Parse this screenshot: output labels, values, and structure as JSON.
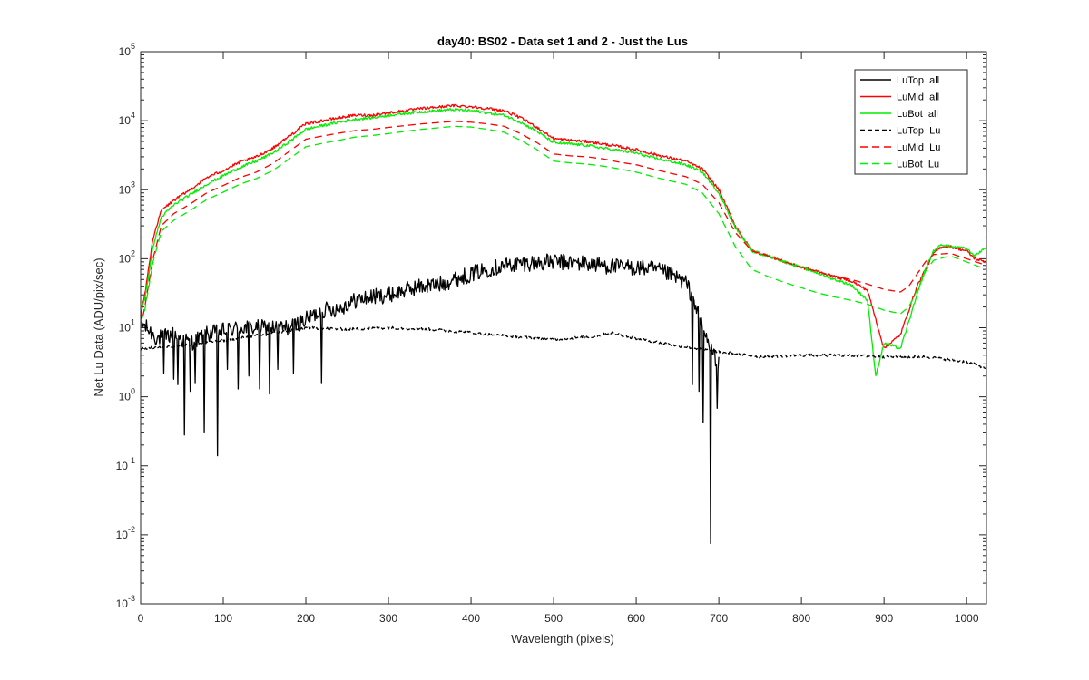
{
  "chart_data": {
    "type": "line",
    "title": "day40: BS02 - Data set 1 and 2 - Just the Lus",
    "xlabel": "Wavelength (pixels)",
    "ylabel": "Net Lu Data (ADU/pix/sec)",
    "xlim": [
      0,
      1024
    ],
    "ylim": [
      0.001,
      100000
    ],
    "yscale": "log",
    "grid": false,
    "legend_position": "top-right",
    "x_ticks": [
      "0",
      "100",
      "200",
      "300",
      "400",
      "500",
      "600",
      "700",
      "800",
      "900",
      "1000"
    ],
    "y_ticks": [
      {
        "base": "10",
        "exp": "-3"
      },
      {
        "base": "10",
        "exp": "-2"
      },
      {
        "base": "10",
        "exp": "-1"
      },
      {
        "base": "10",
        "exp": "0"
      },
      {
        "base": "10",
        "exp": "1"
      },
      {
        "base": "10",
        "exp": "2"
      },
      {
        "base": "10",
        "exp": "3"
      },
      {
        "base": "10",
        "exp": "4"
      },
      {
        "base": "10",
        "exp": "5"
      }
    ],
    "series": [
      {
        "name": "LuTop  all",
        "color": "#000000",
        "dash": "solid",
        "noise": "high",
        "x": [
          0,
          20,
          40,
          60,
          80,
          100,
          120,
          140,
          160,
          180,
          200,
          220,
          240,
          260,
          280,
          300,
          320,
          340,
          360,
          380,
          400,
          420,
          440,
          460,
          480,
          500,
          520,
          540,
          560,
          580,
          600,
          620,
          640,
          660,
          670,
          680,
          690,
          700
        ],
        "y": [
          12,
          7,
          8,
          6,
          8,
          9,
          10,
          10,
          10,
          10,
          13,
          18,
          19,
          25,
          28,
          30,
          35,
          40,
          42,
          50,
          60,
          70,
          80,
          85,
          88,
          90,
          88,
          85,
          80,
          75,
          75,
          70,
          60,
          45,
          25,
          10,
          5,
          3
        ],
        "spikes": [
          {
            "x": 28,
            "y": 2.2
          },
          {
            "x": 40,
            "y": 1.8
          },
          {
            "x": 45,
            "y": 1.5
          },
          {
            "x": 53,
            "y": 0.28
          },
          {
            "x": 60,
            "y": 1.2
          },
          {
            "x": 66,
            "y": 1.6
          },
          {
            "x": 77,
            "y": 0.3
          },
          {
            "x": 93,
            "y": 0.14
          },
          {
            "x": 105,
            "y": 2.5
          },
          {
            "x": 118,
            "y": 1.3
          },
          {
            "x": 131,
            "y": 2
          },
          {
            "x": 144,
            "y": 1.3
          },
          {
            "x": 156,
            "y": 1.1
          },
          {
            "x": 166,
            "y": 2.5
          },
          {
            "x": 185,
            "y": 2.2
          },
          {
            "x": 219,
            "y": 1.6
          },
          {
            "x": 668,
            "y": 1.5
          },
          {
            "x": 676,
            "y": 1.2
          },
          {
            "x": 681,
            "y": 0.42
          },
          {
            "x": 690,
            "y": 0.0075
          },
          {
            "x": 698,
            "y": 0.68
          }
        ]
      },
      {
        "name": "LuMid  all",
        "color": "#ff0000",
        "dash": "solid",
        "noise": "low",
        "x": [
          0,
          5,
          15,
          25,
          40,
          60,
          80,
          100,
          120,
          140,
          160,
          180,
          200,
          220,
          240,
          260,
          280,
          300,
          340,
          380,
          400,
          420,
          440,
          460,
          480,
          500,
          520,
          540,
          560,
          580,
          600,
          620,
          640,
          660,
          680,
          700,
          720,
          740,
          760,
          780,
          800,
          820,
          840,
          860,
          880,
          900,
          920,
          940,
          950,
          960,
          970,
          980,
          1000,
          1010,
          1024
        ],
        "y": [
          15,
          30,
          200,
          500,
          700,
          1000,
          1500,
          1900,
          2500,
          3000,
          4000,
          6000,
          9000,
          10000,
          11000,
          12000,
          12000,
          13000,
          15000,
          16500,
          16000,
          15000,
          14000,
          11000,
          8000,
          5500,
          5200,
          5000,
          4600,
          4200,
          3800,
          3300,
          2900,
          2600,
          2000,
          1000,
          300,
          130,
          110,
          90,
          75,
          65,
          55,
          48,
          35,
          5,
          8,
          40,
          70,
          120,
          150,
          150,
          130,
          100,
          90
        ]
      },
      {
        "name": "LuBot  all",
        "color": "#00ee00",
        "dash": "solid",
        "noise": "low",
        "x": [
          0,
          5,
          15,
          25,
          40,
          60,
          80,
          100,
          120,
          140,
          160,
          180,
          200,
          220,
          240,
          260,
          280,
          300,
          340,
          380,
          400,
          420,
          440,
          460,
          480,
          500,
          520,
          540,
          560,
          580,
          600,
          620,
          640,
          660,
          680,
          700,
          720,
          740,
          760,
          780,
          800,
          820,
          840,
          860,
          880,
          890,
          900,
          920,
          940,
          950,
          960,
          970,
          980,
          1000,
          1010,
          1024
        ],
        "y": [
          20,
          25,
          150,
          400,
          600,
          850,
          1200,
          1600,
          2100,
          2600,
          3400,
          5000,
          7500,
          8500,
          9500,
          10500,
          11000,
          12000,
          13500,
          14500,
          14000,
          13000,
          12000,
          9500,
          7000,
          4800,
          4600,
          4400,
          4000,
          3700,
          3400,
          2900,
          2600,
          2300,
          1800,
          900,
          280,
          130,
          110,
          90,
          75,
          62,
          50,
          42,
          25,
          2,
          6,
          5,
          30,
          70,
          130,
          160,
          150,
          140,
          110,
          150
        ]
      },
      {
        "name": "LuTop  Lu",
        "color": "#000000",
        "dash": "5,3",
        "noise": "low",
        "x": [
          0,
          50,
          100,
          150,
          200,
          250,
          300,
          350,
          400,
          450,
          500,
          550,
          570,
          600,
          650,
          700,
          750,
          800,
          850,
          900,
          950,
          1000,
          1024
        ],
        "y": [
          5,
          5.5,
          6.5,
          8,
          10,
          9.5,
          10,
          9.5,
          8.5,
          7.5,
          6.8,
          7.5,
          8.5,
          7,
          5.5,
          4.5,
          3.8,
          4,
          4,
          3.8,
          3.8,
          3.2,
          2.6
        ]
      },
      {
        "name": "LuMid  Lu",
        "color": "#ff0000",
        "dash": "8,5",
        "noise": "none",
        "x": [
          0,
          5,
          15,
          25,
          40,
          60,
          80,
          100,
          120,
          140,
          160,
          180,
          200,
          220,
          240,
          260,
          280,
          300,
          340,
          380,
          400,
          420,
          440,
          460,
          480,
          500,
          520,
          540,
          560,
          580,
          600,
          620,
          640,
          660,
          680,
          700,
          720,
          740,
          760,
          780,
          800,
          820,
          840,
          860,
          880,
          900,
          920,
          930,
          940,
          950,
          960,
          980,
          1000,
          1024
        ],
        "y": [
          10,
          20,
          100,
          300,
          450,
          620,
          900,
          1150,
          1500,
          1800,
          2400,
          3600,
          5400,
          6000,
          6600,
          7200,
          7500,
          8000,
          9000,
          9800,
          9500,
          9000,
          8300,
          6500,
          4800,
          3300,
          3100,
          3000,
          2800,
          2500,
          2300,
          2000,
          1750,
          1550,
          1200,
          650,
          240,
          130,
          110,
          90,
          75,
          65,
          56,
          50,
          43,
          36,
          33,
          40,
          60,
          90,
          115,
          120,
          100,
          80
        ]
      },
      {
        "name": "LuBot  Lu",
        "color": "#00ee00",
        "dash": "8,5",
        "noise": "none",
        "x": [
          0,
          5,
          15,
          25,
          40,
          60,
          80,
          100,
          120,
          140,
          160,
          180,
          200,
          220,
          240,
          260,
          280,
          300,
          340,
          380,
          400,
          420,
          440,
          460,
          480,
          500,
          520,
          540,
          560,
          580,
          600,
          620,
          640,
          660,
          680,
          700,
          720,
          740,
          760,
          780,
          800,
          820,
          840,
          860,
          880,
          900,
          920,
          930,
          940,
          950,
          960,
          980,
          1000,
          1024
        ],
        "y": [
          12,
          18,
          90,
          250,
          360,
          500,
          720,
          920,
          1200,
          1450,
          1900,
          2800,
          4200,
          4700,
          5200,
          5800,
          6100,
          6500,
          7500,
          8300,
          8100,
          7500,
          6800,
          5200,
          3800,
          2600,
          2450,
          2350,
          2200,
          2000,
          1800,
          1550,
          1350,
          1200,
          900,
          450,
          150,
          70,
          55,
          45,
          38,
          32,
          28,
          25,
          22,
          18,
          16,
          20,
          35,
          65,
          95,
          110,
          90,
          70
        ]
      }
    ]
  }
}
